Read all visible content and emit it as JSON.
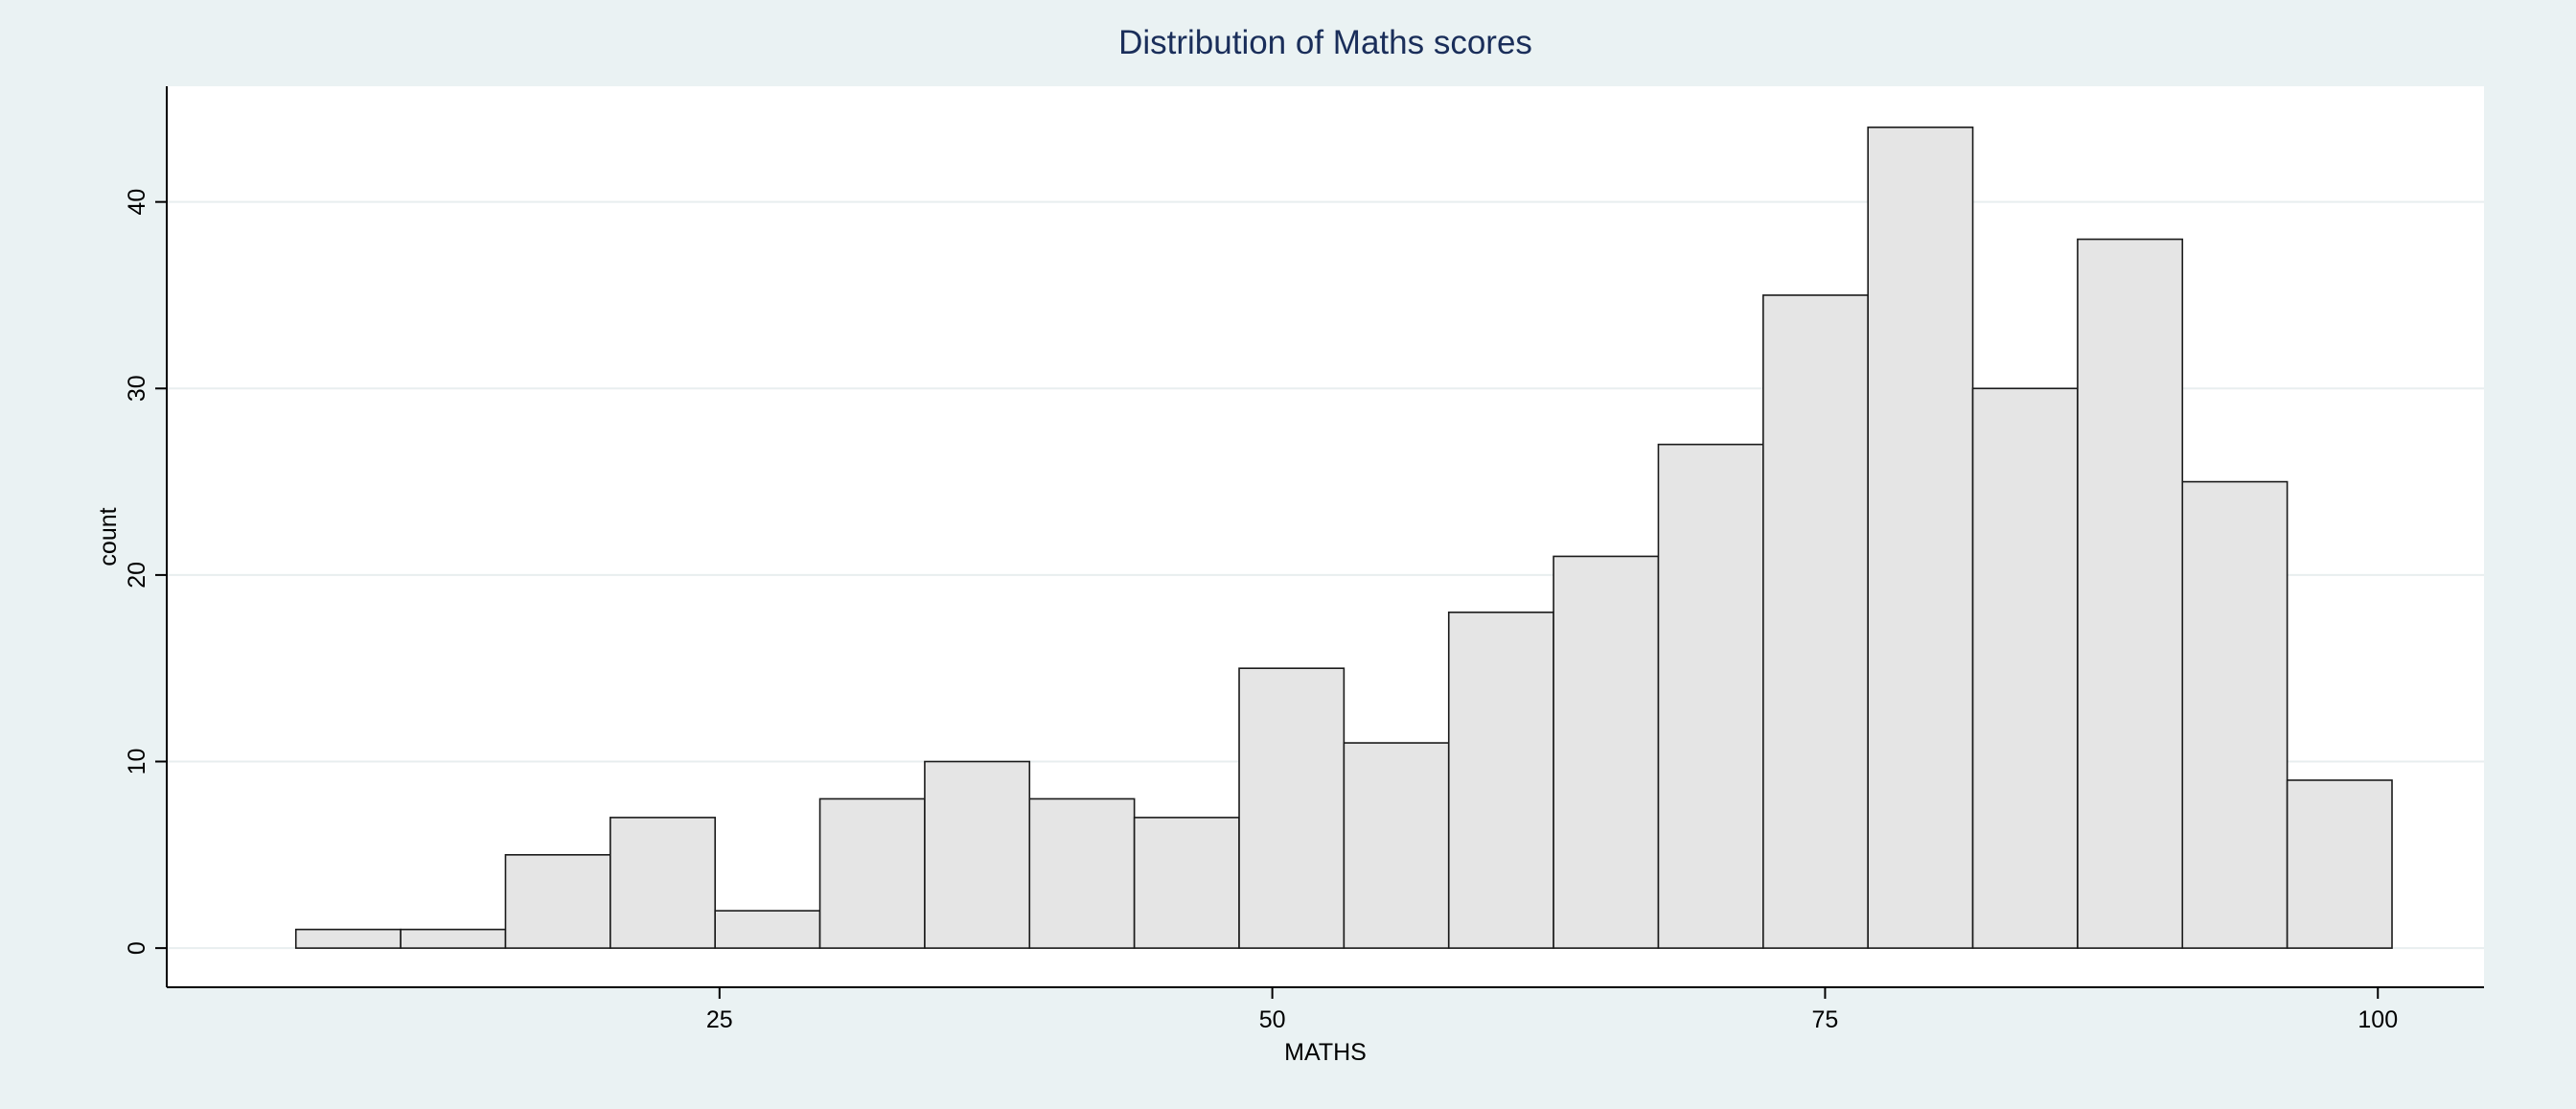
{
  "chart_data": {
    "type": "bar",
    "title": "Distribution of Maths scores",
    "xlabel": "MATHS",
    "ylabel": "count",
    "bins": [
      {
        "start": 5.84,
        "end": 10.58,
        "count": 1
      },
      {
        "start": 10.58,
        "end": 15.32,
        "count": 1
      },
      {
        "start": 15.32,
        "end": 20.06,
        "count": 5
      },
      {
        "start": 20.06,
        "end": 24.8,
        "count": 7
      },
      {
        "start": 24.8,
        "end": 29.54,
        "count": 2
      },
      {
        "start": 29.54,
        "end": 34.28,
        "count": 8
      },
      {
        "start": 34.28,
        "end": 39.02,
        "count": 10
      },
      {
        "start": 39.02,
        "end": 43.76,
        "count": 8
      },
      {
        "start": 43.76,
        "end": 48.5,
        "count": 7
      },
      {
        "start": 48.5,
        "end": 53.24,
        "count": 15
      },
      {
        "start": 53.24,
        "end": 57.98,
        "count": 11
      },
      {
        "start": 57.98,
        "end": 62.72,
        "count": 18
      },
      {
        "start": 62.72,
        "end": 67.46,
        "count": 21
      },
      {
        "start": 67.46,
        "end": 72.2,
        "count": 27
      },
      {
        "start": 72.2,
        "end": 76.94,
        "count": 35
      },
      {
        "start": 76.94,
        "end": 81.68,
        "count": 44
      },
      {
        "start": 81.68,
        "end": 86.42,
        "count": 30
      },
      {
        "start": 86.42,
        "end": 91.16,
        "count": 38
      },
      {
        "start": 91.16,
        "end": 95.9,
        "count": 25
      },
      {
        "start": 95.9,
        "end": 100.64,
        "count": 9
      }
    ],
    "xticks": [
      25,
      50,
      75,
      100
    ],
    "xtick_labels": [
      "25",
      "50",
      "75",
      "100"
    ],
    "yticks": [
      0,
      10,
      20,
      30,
      40
    ],
    "ytick_labels": [
      "0",
      "10",
      "20",
      "30",
      "40"
    ],
    "xlim": [
      0,
      104.8
    ],
    "ylim": [
      -2.1,
      46.2
    ],
    "grid": "horizontal",
    "colors": {
      "background": "#eaf2f3",
      "plot_background": "#ffffff",
      "bar_fill": "#e5e5e5",
      "bar_stroke": "#1a1a1a",
      "grid": "#e8eeef",
      "title": "#1a2e5a",
      "text": "#000000"
    }
  }
}
